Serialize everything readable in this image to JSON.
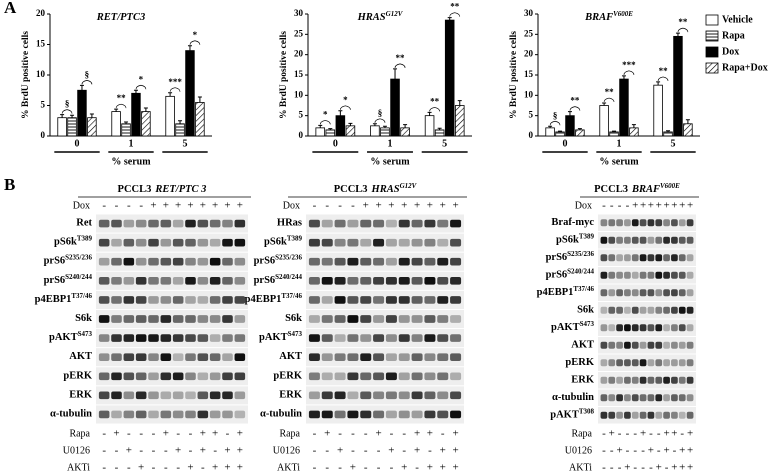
{
  "panel_a": "A",
  "panel_b": "B",
  "chart_data": [
    {
      "type": "bar",
      "title": "RET/PTC3",
      "title_superscript": "",
      "ylabel": "% BrdU positive cells",
      "xlabel": "% serum",
      "categories": [
        "0",
        "1",
        "5"
      ],
      "ylim": [
        0,
        20
      ],
      "yticks": [
        0,
        5,
        10,
        15,
        20
      ],
      "series": [
        {
          "name": "Vehicle",
          "color": "#ffffff",
          "pattern": "none",
          "values": [
            3,
            4,
            6.5
          ],
          "errors": [
            0.5,
            0.4,
            0.6
          ]
        },
        {
          "name": "Rapa",
          "color": "#ffffff",
          "pattern": "horizontal",
          "values": [
            3,
            2,
            2
          ],
          "errors": [
            0.4,
            0.3,
            0.5
          ]
        },
        {
          "name": "Dox",
          "color": "#000000",
          "pattern": "none",
          "values": [
            7.5,
            7,
            14
          ],
          "errors": [
            0.8,
            0.5,
            0.8
          ]
        },
        {
          "name": "Rapa+Dox",
          "color": "#ffffff",
          "pattern": "diagonal",
          "values": [
            3,
            4,
            5.5
          ],
          "errors": [
            0.6,
            0.6,
            0.9
          ]
        }
      ],
      "annotations": [
        [
          "§",
          "§"
        ],
        [
          "**",
          "*"
        ],
        [
          "***",
          "*"
        ]
      ],
      "legend": false
    },
    {
      "type": "bar",
      "title": "HRAS",
      "title_superscript": "G12V",
      "ylabel": "% BrdU positive cells",
      "xlabel": "% serum",
      "categories": [
        "0",
        "1",
        "5"
      ],
      "ylim": [
        0,
        30
      ],
      "yticks": [
        0,
        5,
        10,
        15,
        20,
        25,
        30
      ],
      "series": [
        {
          "name": "Vehicle",
          "color": "#ffffff",
          "pattern": "none",
          "values": [
            2,
            2.5,
            5
          ],
          "errors": [
            0.6,
            0.5,
            0.8
          ]
        },
        {
          "name": "Rapa",
          "color": "#ffffff",
          "pattern": "horizontal",
          "values": [
            1.5,
            2,
            1.5
          ],
          "errors": [
            0.3,
            0.4,
            0.4
          ]
        },
        {
          "name": "Dox",
          "color": "#000000",
          "pattern": "none",
          "values": [
            5,
            14,
            28.5
          ],
          "errors": [
            1.2,
            2.5,
            0.6
          ]
        },
        {
          "name": "Rapa+Dox",
          "color": "#ffffff",
          "pattern": "diagonal",
          "values": [
            2.5,
            2,
            7.5
          ],
          "errors": [
            0.6,
            0.8,
            1.2
          ]
        }
      ],
      "annotations": [
        [
          "*",
          "*"
        ],
        [
          "§",
          "**"
        ],
        [
          "**",
          "**"
        ]
      ],
      "legend": false
    },
    {
      "type": "bar",
      "title": "BRAF",
      "title_superscript": "V600E",
      "ylabel": "% BrdU positive cells",
      "xlabel": "% serum",
      "categories": [
        "0",
        "1",
        "5"
      ],
      "ylim": [
        0,
        30
      ],
      "yticks": [
        0,
        5,
        10,
        15,
        20,
        25,
        30
      ],
      "series": [
        {
          "name": "Vehicle",
          "color": "#ffffff",
          "pattern": "none",
          "values": [
            2,
            7.5,
            12.5
          ],
          "errors": [
            0.4,
            0.6,
            0.8
          ]
        },
        {
          "name": "Rapa",
          "color": "#ffffff",
          "pattern": "horizontal",
          "values": [
            1,
            1,
            1
          ],
          "errors": [
            0.2,
            0.2,
            0.3
          ]
        },
        {
          "name": "Dox",
          "color": "#000000",
          "pattern": "none",
          "values": [
            5,
            14,
            24.5
          ],
          "errors": [
            1.0,
            0.8,
            0.8
          ]
        },
        {
          "name": "Rapa+Dox",
          "color": "#ffffff",
          "pattern": "diagonal",
          "values": [
            1.5,
            2,
            3
          ],
          "errors": [
            0.3,
            0.8,
            1.0
          ]
        }
      ],
      "annotations": [
        [
          "§",
          "**"
        ],
        [
          "**",
          "***"
        ],
        [
          "**",
          "**"
        ]
      ],
      "legend": true
    }
  ],
  "blots": [
    {
      "title_prefix": "PCCL3",
      "title_gene": "RET/PTC 3",
      "title_superscript": "",
      "top_treatment": {
        "label": "Dox",
        "signs": [
          "-",
          "-",
          "-",
          "-",
          "+",
          "+",
          "+",
          "+",
          "+",
          "+",
          "+",
          "+"
        ]
      },
      "rows": [
        {
          "label": "Ret",
          "sup": ""
        },
        {
          "label": "pS6k",
          "sup": "T389"
        },
        {
          "label": "prS6",
          "sup": "S235/236"
        },
        {
          "label": "prS6",
          "sup": "S240/244"
        },
        {
          "label": "p4EBP1",
          "sup": "T37/46"
        },
        {
          "label": "S6k",
          "sup": ""
        },
        {
          "label": "pAKT",
          "sup": "S473"
        },
        {
          "label": "AKT",
          "sup": ""
        },
        {
          "label": "pERK",
          "sup": ""
        },
        {
          "label": "ERK",
          "sup": ""
        },
        {
          "label": "α-tubulin",
          "sup": ""
        }
      ],
      "bottom_treatments": [
        {
          "label": "Rapa",
          "signs": [
            "-",
            "+",
            "-",
            "-",
            "-",
            "+",
            "-",
            "-",
            "+",
            "+",
            "-",
            "+"
          ]
        },
        {
          "label": "U0126",
          "signs": [
            "-",
            "-",
            "+",
            "-",
            "-",
            "-",
            "+",
            "-",
            "+",
            "-",
            "+",
            "+"
          ]
        },
        {
          "label": "AKTi",
          "signs": [
            "-",
            "-",
            "-",
            "+",
            "-",
            "-",
            "-",
            "+",
            "-",
            "+",
            "+",
            "+"
          ]
        }
      ]
    },
    {
      "title_prefix": "PCCL3",
      "title_gene": "HRAS",
      "title_superscript": "G12V",
      "top_treatment": {
        "label": "Dox",
        "signs": [
          "-",
          "-",
          "-",
          "-",
          "+",
          "+",
          "+",
          "+",
          "+",
          "+",
          "+",
          "+"
        ]
      },
      "rows": [
        {
          "label": "HRas",
          "sup": ""
        },
        {
          "label": "pS6k",
          "sup": "T389"
        },
        {
          "label": "prS6",
          "sup": "S235/236"
        },
        {
          "label": "prS6",
          "sup": "S240/244"
        },
        {
          "label": "p4EBP1",
          "sup": "T37/46"
        },
        {
          "label": "S6k",
          "sup": ""
        },
        {
          "label": "pAKT",
          "sup": "S473"
        },
        {
          "label": "AKT",
          "sup": ""
        },
        {
          "label": "pERK",
          "sup": ""
        },
        {
          "label": "ERK",
          "sup": ""
        },
        {
          "label": "α-tubulin",
          "sup": ""
        }
      ],
      "bottom_treatments": [
        {
          "label": "Rapa",
          "signs": [
            "-",
            "+",
            "-",
            "-",
            "-",
            "+",
            "-",
            "-",
            "+",
            "+",
            "-",
            "+"
          ]
        },
        {
          "label": "U0126",
          "signs": [
            "-",
            "-",
            "+",
            "-",
            "-",
            "-",
            "+",
            "-",
            "+",
            "-",
            "+",
            "+"
          ]
        },
        {
          "label": "AKTi",
          "signs": [
            "-",
            "-",
            "-",
            "+",
            "-",
            "-",
            "-",
            "+",
            "-",
            "+",
            "+",
            "+"
          ]
        }
      ]
    },
    {
      "title_prefix": "PCCL3",
      "title_gene": "BRAF",
      "title_superscript": "V600E",
      "top_treatment": {
        "label": "Dox",
        "signs": [
          "-",
          "-",
          "-",
          "-",
          "+",
          "+",
          "+",
          "+",
          "+",
          "+",
          "+",
          "+"
        ]
      },
      "rows": [
        {
          "label": "Braf-myc",
          "sup": ""
        },
        {
          "label": "pS6k",
          "sup": "T389"
        },
        {
          "label": "prS6",
          "sup": "S235/236"
        },
        {
          "label": "prS6",
          "sup": "S240/244"
        },
        {
          "label": "p4EBP1",
          "sup": "T37/46"
        },
        {
          "label": "S6k",
          "sup": ""
        },
        {
          "label": "pAKT",
          "sup": "S473"
        },
        {
          "label": "AKT",
          "sup": ""
        },
        {
          "label": "pERK",
          "sup": ""
        },
        {
          "label": "ERK",
          "sup": ""
        },
        {
          "label": "α-tubulin",
          "sup": ""
        },
        {
          "label": "pAKT",
          "sup": "T308"
        }
      ],
      "bottom_treatments": [
        {
          "label": "Rapa",
          "signs": [
            "-",
            "+",
            "-",
            "-",
            "-",
            "+",
            "-",
            "-",
            "+",
            "+",
            "-",
            "+"
          ]
        },
        {
          "label": "U0126",
          "signs": [
            "-",
            "-",
            "+",
            "-",
            "-",
            "-",
            "+",
            "-",
            "+",
            "-",
            "+",
            "+"
          ]
        },
        {
          "label": "AKTi",
          "signs": [
            "-",
            "-",
            "-",
            "+",
            "-",
            "-",
            "-",
            "+",
            "-",
            "+",
            "+",
            "+"
          ]
        }
      ]
    }
  ]
}
